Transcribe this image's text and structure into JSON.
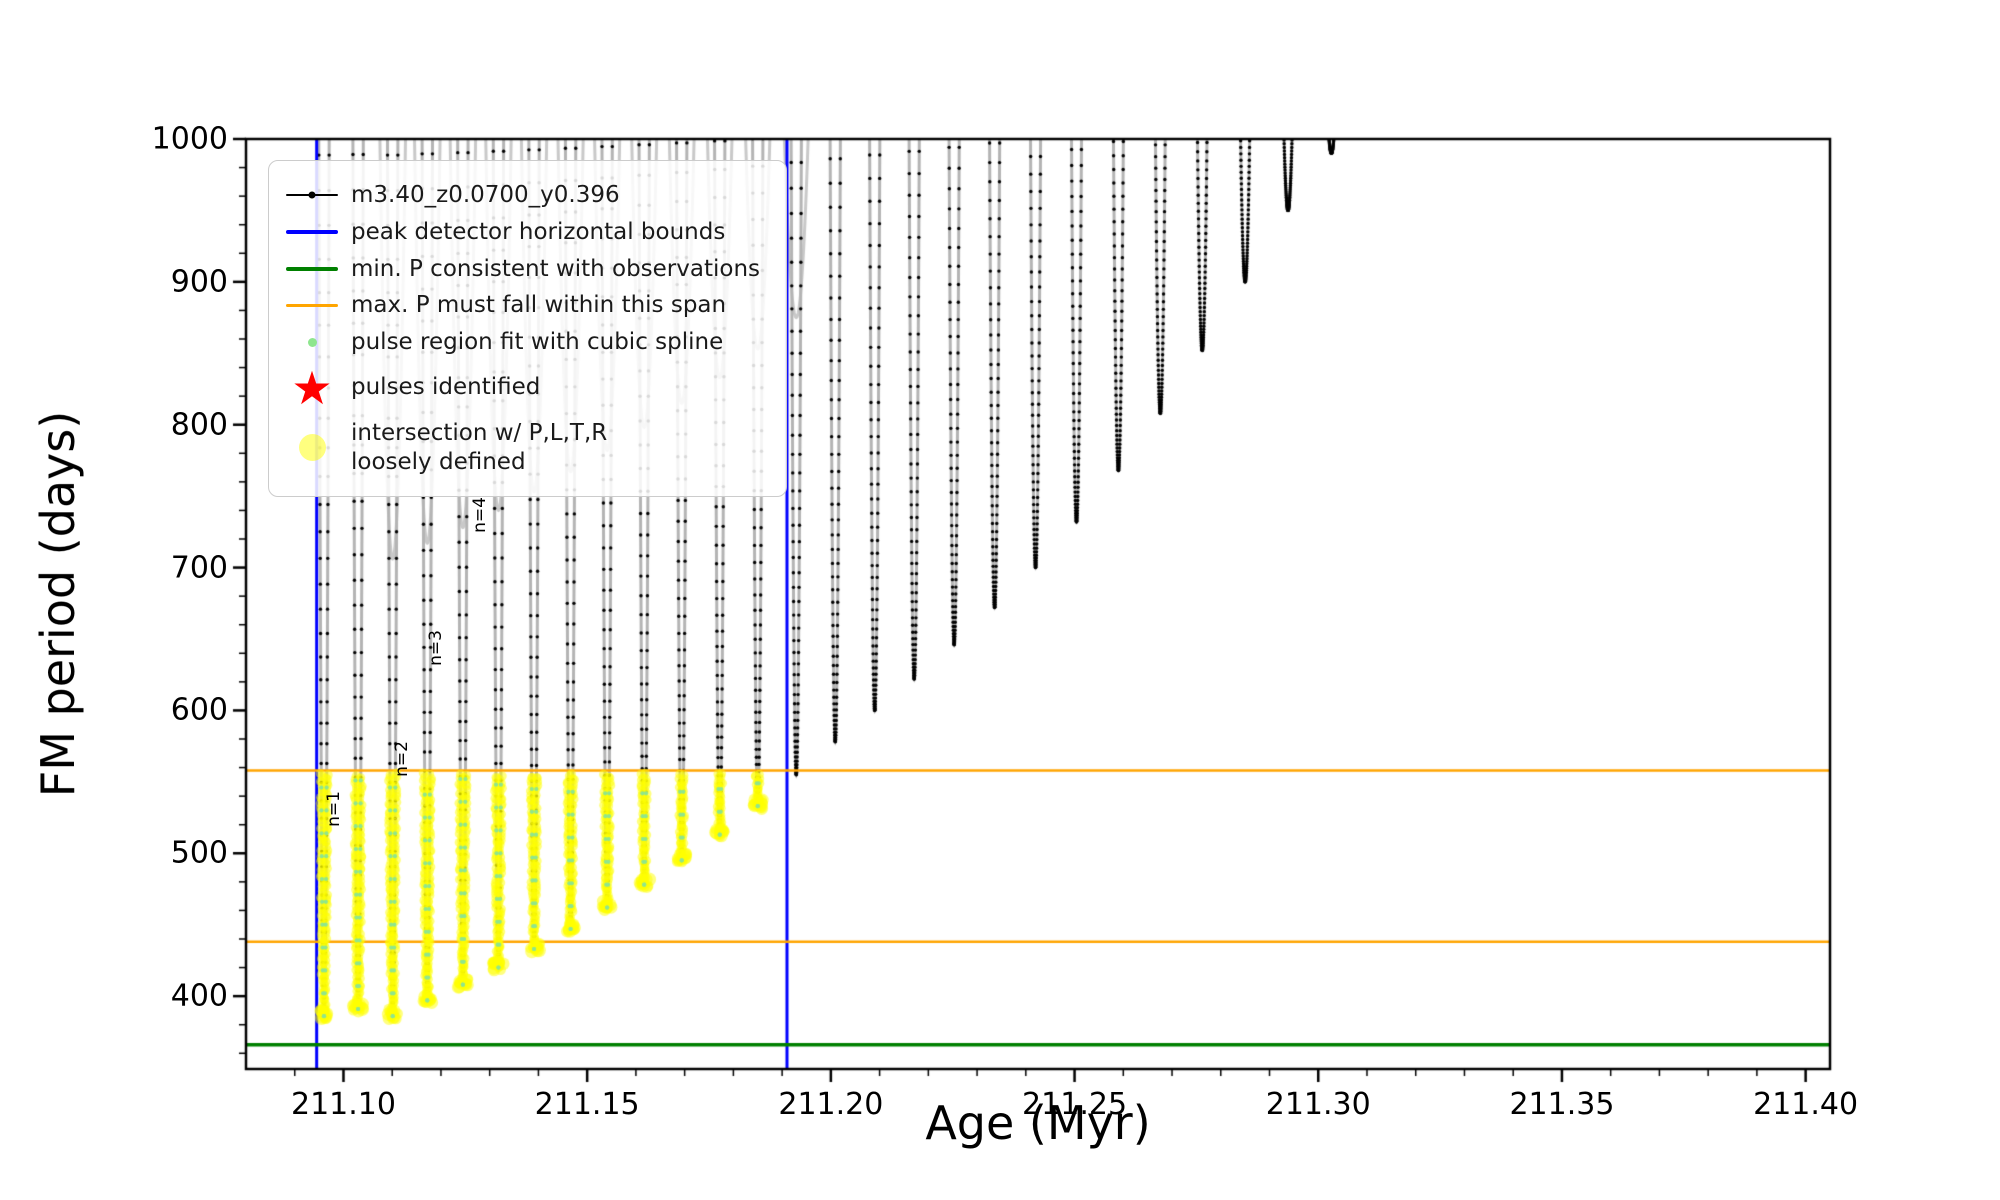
{
  "page": {
    "background": "#ffffff"
  },
  "chart_data": {
    "type": "line",
    "title": "",
    "xlabel": "Age (Myr)",
    "ylabel": "FM period (days)",
    "xlim": [
      211.08,
      211.405
    ],
    "ylim": [
      349,
      1000
    ],
    "xticks": [
      211.1,
      211.15,
      211.2,
      211.25,
      211.3,
      211.35,
      211.4
    ],
    "xtick_labels": [
      "211.10",
      "211.15",
      "211.20",
      "211.25",
      "211.30",
      "211.35",
      "211.40"
    ],
    "yticks": [
      400,
      500,
      600,
      700,
      800,
      900,
      1000
    ],
    "ytick_labels": [
      "400",
      "500",
      "600",
      "700",
      "800",
      "900",
      "1000"
    ],
    "x_minor_step": 0.01,
    "y_minor_step": 20,
    "grid": false,
    "legend_position": "upper left",
    "series": [
      {
        "name": "m3.40_z0.0700_y0.396",
        "color": "#000000",
        "marker_line_color": "#b4b4b4",
        "pulse_valleys": {
          "age": [
            211.096,
            211.103,
            211.1101,
            211.1172,
            211.1245,
            211.1318,
            211.1391,
            211.1466,
            211.1541,
            211.1617,
            211.1694,
            211.1772,
            211.185,
            211.1929,
            211.2009,
            211.209,
            211.2171,
            211.2253,
            211.2336,
            211.242,
            211.2504,
            211.259,
            211.2676,
            211.2762,
            211.285,
            211.2938,
            211.3027
          ],
          "min_period": [
            386,
            391,
            386,
            397,
            408,
            420,
            433,
            447,
            462,
            478,
            495,
            513,
            533,
            555,
            578,
            600,
            622,
            646,
            672,
            700,
            732,
            768,
            808,
            852,
            900,
            950,
            990
          ],
          "top_period": 1040,
          "half_width": 0.0011
        }
      }
    ],
    "gray_track": {
      "color": "#c9c9c9",
      "offset": 320,
      "half_width": 0.0028,
      "max_min": 960,
      "valley_count": 14
    },
    "peak_detector_bounds": {
      "label": "peak detector horizontal bounds",
      "color": "#0000ff",
      "x": [
        211.0945,
        211.191
      ]
    },
    "min_p_line": {
      "label": "min. P consistent with observations",
      "color": "#008000",
      "y": 366
    },
    "max_p_span": {
      "label": "max. P must fall within this span",
      "color": "#ffa500",
      "y": [
        438,
        558
      ]
    },
    "spline_markers": {
      "label": "pulse region fit with cubic spline",
      "color": "#8ee68e"
    },
    "pulses_identified": {
      "label": "pulses identified",
      "color": "#ff0000",
      "points": []
    },
    "intersection_markers": {
      "label": "intersection w/ P,L,T,R loosely defined",
      "color": "#ffff00",
      "p_max": 556,
      "x_range": [
        211.094,
        211.1915
      ]
    },
    "annotations": [
      {
        "text": "n=1",
        "x": 211.098,
        "y": 531
      },
      {
        "text": "n=2",
        "x": 211.112,
        "y": 566
      },
      {
        "text": "n=3",
        "x": 211.119,
        "y": 644
      },
      {
        "text": "n=4",
        "x": 211.128,
        "y": 737
      }
    ]
  },
  "legend": {
    "items": [
      {
        "type": "line-dot",
        "color": "#000000",
        "line_width": 2,
        "label": "m3.40_z0.0700_y0.396"
      },
      {
        "type": "line",
        "color": "#0000ff",
        "line_width": 4,
        "label": "peak detector horizontal bounds"
      },
      {
        "type": "line",
        "color": "#008000",
        "line_width": 4,
        "label": "min. P consistent with observations"
      },
      {
        "type": "line",
        "color": "#ffa500",
        "line_width": 3,
        "label": "max. P must fall within this span"
      },
      {
        "type": "dot",
        "color": "#8ee68e",
        "size": 9,
        "label": "pulse region fit with cubic spline"
      },
      {
        "type": "star",
        "color": "#ff0000",
        "size": 46,
        "label": "pulses identified"
      },
      {
        "type": "dot",
        "color": "rgba(255,255,0,0.5)",
        "size": 27,
        "label": "intersection w/ P,L,T,R\nloosely defined"
      }
    ]
  }
}
